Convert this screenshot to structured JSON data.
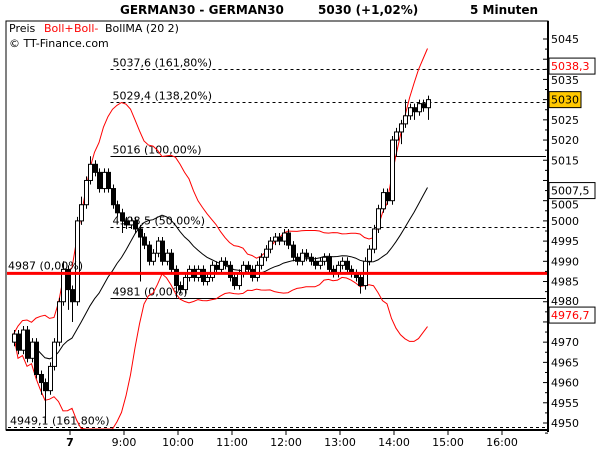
{
  "header": {
    "symbol": "GERMAN30 - GERMAN30",
    "last": "5030 (+1,02%)",
    "interval": "5 Minuten"
  },
  "legend": {
    "price": "Preis",
    "boll_upper": "Boll+",
    "boll_lower": "Boll-",
    "boll_ma": "BollMA (20 2)"
  },
  "watermark": "© TT-Finance.com",
  "colors": {
    "candle_up": "#ffffff",
    "candle_down": "#000000",
    "band": "#ff0000",
    "ma": "#000000",
    "last_price_bg": "#ffc800",
    "support": "#ff0000"
  },
  "chart_data": {
    "type": "candlestick",
    "interval_min": 5,
    "start_time": "06:55",
    "ylim": [
      4950,
      5045
    ],
    "yticks": [
      4950,
      4955,
      4960,
      4965,
      4970,
      4975,
      4980,
      4985,
      4990,
      4995,
      5000,
      5005,
      5010,
      5015,
      5020,
      5025,
      5030,
      5035,
      5040,
      5045
    ],
    "ytick_labels_shown": [
      "4950",
      "4955",
      "4960",
      "4965",
      "4970",
      "4980",
      "4985",
      "4990",
      "4995",
      "5000",
      "5005",
      "5015",
      "5020",
      "5025",
      "5035",
      "5045"
    ],
    "xticks": [
      {
        "label": "7",
        "time": "08:00",
        "bold": true
      },
      {
        "label": "9:00",
        "time": "09:00"
      },
      {
        "label": "10:00",
        "time": "10:00"
      },
      {
        "label": "11:00",
        "time": "11:00"
      },
      {
        "label": "12:00",
        "time": "12:00"
      },
      {
        "label": "13:00",
        "time": "13:00"
      },
      {
        "label": "14:00",
        "time": "14:00"
      },
      {
        "label": "15:00",
        "time": "15:00"
      },
      {
        "label": "16:00",
        "time": "16:00"
      }
    ],
    "xlim": [
      "06:50",
      "16:25"
    ],
    "indicator": {
      "name": "Bollinger",
      "period": 20,
      "stddev": 2
    },
    "ohlc": [
      [
        4970,
        4973,
        4969,
        4972
      ],
      [
        4972,
        4973,
        4967,
        4968
      ],
      [
        4968,
        4974,
        4967,
        4973
      ],
      [
        4973,
        4974,
        4965,
        4966
      ],
      [
        4966,
        4971,
        4965,
        4970
      ],
      [
        4970,
        4971,
        4961,
        4962
      ],
      [
        4962,
        4963,
        4957,
        4960
      ],
      [
        4960,
        4961,
        4950,
        4958
      ],
      [
        4958,
        4965,
        4957,
        4964
      ],
      [
        4964,
        4971,
        4963,
        4970
      ],
      [
        4970,
        4981,
        4969,
        4980
      ],
      [
        4980,
        4990,
        4979,
        4988
      ],
      [
        4988,
        4989,
        4978,
        4983
      ],
      [
        4983,
        4984,
        4975,
        4980
      ],
      [
        4980,
        5001,
        4979,
        5000
      ],
      [
        5000,
        5006,
        4999,
        5004
      ],
      [
        5004,
        5011,
        5003,
        5010
      ],
      [
        5010,
        5016,
        5009,
        5014
      ],
      [
        5014,
        5015,
        5011,
        5012
      ],
      [
        5012,
        5013,
        5007,
        5008
      ],
      [
        5008,
        5013,
        5007,
        5012
      ],
      [
        5012,
        5013,
        5007,
        5008
      ],
      [
        5008,
        5009,
        5003,
        5004
      ],
      [
        5004,
        5005,
        5001,
        5002
      ],
      [
        5002,
        5003,
        4997,
        5000
      ],
      [
        5000,
        5001,
        4998,
        4999
      ],
      [
        4999,
        5001,
        4998,
        5000
      ],
      [
        5000,
        5001,
        4997,
        4998
      ],
      [
        4998,
        4999,
        4985,
        4996
      ],
      [
        4996,
        4997,
        4993,
        4994
      ],
      [
        4994,
        4995,
        4989,
        4990
      ],
      [
        4990,
        4993,
        4989,
        4992
      ],
      [
        4992,
        4996,
        4991,
        4995
      ],
      [
        4995,
        4996,
        4989,
        4990
      ],
      [
        4990,
        4993,
        4989,
        4992
      ],
      [
        4992,
        4993,
        4987,
        4988
      ],
      [
        4988,
        4989,
        4981,
        4984
      ],
      [
        4984,
        4985,
        4982,
        4983
      ],
      [
        4983,
        4987,
        4982,
        4986
      ],
      [
        4986,
        4989,
        4985,
        4988
      ],
      [
        4988,
        4989,
        4985,
        4986
      ],
      [
        4986,
        4989,
        4985,
        4988
      ],
      [
        4988,
        4989,
        4984,
        4985
      ],
      [
        4985,
        4987,
        4984,
        4986
      ],
      [
        4986,
        4990,
        4985,
        4989
      ],
      [
        4989,
        4990,
        4987,
        4988
      ],
      [
        4988,
        4991,
        4987,
        4990
      ],
      [
        4990,
        4991,
        4988,
        4989
      ],
      [
        4989,
        4990,
        4985,
        4986
      ],
      [
        4986,
        4987,
        4983,
        4984
      ],
      [
        4984,
        4988,
        4983,
        4987
      ],
      [
        4987,
        4990,
        4986,
        4989
      ],
      [
        4989,
        4990,
        4987,
        4988
      ],
      [
        4988,
        4989,
        4985,
        4986
      ],
      [
        4986,
        4990,
        4985,
        4989
      ],
      [
        4989,
        4992,
        4988,
        4991
      ],
      [
        4991,
        4994,
        4990,
        4993
      ],
      [
        4993,
        4996,
        4992,
        4995
      ],
      [
        4995,
        4997,
        4994,
        4996
      ],
      [
        4996,
        4997,
        4994,
        4995
      ],
      [
        4995,
        4998,
        4994,
        4997
      ],
      [
        4997,
        4998,
        4993,
        4994
      ],
      [
        4994,
        4995,
        4990,
        4991
      ],
      [
        4991,
        4992,
        4989,
        4990
      ],
      [
        4990,
        4993,
        4989,
        4992
      ],
      [
        4992,
        4993,
        4990,
        4991
      ],
      [
        4991,
        4992,
        4989,
        4990
      ],
      [
        4990,
        4991,
        4988,
        4989
      ],
      [
        4989,
        4991,
        4988,
        4990
      ],
      [
        4990,
        4992,
        4989,
        4991
      ],
      [
        4991,
        4992,
        4987,
        4988
      ],
      [
        4988,
        4989,
        4986,
        4987
      ],
      [
        4987,
        4990,
        4986,
        4989
      ],
      [
        4989,
        4991,
        4988,
        4990
      ],
      [
        4990,
        4991,
        4987,
        4988
      ],
      [
        4988,
        4989,
        4986,
        4987
      ],
      [
        4987,
        4988,
        4985,
        4986
      ],
      [
        4986,
        4987,
        4982,
        4984
      ],
      [
        4984,
        4991,
        4983,
        4990
      ],
      [
        4990,
        4994,
        4989,
        4993
      ],
      [
        4993,
        4999,
        4992,
        4998
      ],
      [
        4998,
        5004,
        4997,
        5003
      ],
      [
        5003,
        5008,
        5002,
        5007
      ],
      [
        5007,
        5008,
        5004,
        5005
      ],
      [
        5005,
        5021,
        5004,
        5020
      ],
      [
        5020,
        5023,
        5016,
        5022
      ],
      [
        5022,
        5025,
        5019,
        5024
      ],
      [
        5024,
        5030,
        5023,
        5026
      ],
      [
        5026,
        5029,
        5025,
        5028
      ],
      [
        5028,
        5029,
        5025,
        5027
      ],
      [
        5027,
        5030,
        5026,
        5029
      ],
      [
        5029,
        5030,
        5027,
        5028
      ],
      [
        5028,
        5031,
        5025,
        5030
      ]
    ],
    "fib_lines": [
      {
        "price": 5037.6,
        "label": "5037,6 (161,80%)",
        "style": "dashed",
        "from": "08:45"
      },
      {
        "price": 5029.4,
        "label": "5029,4 (138,20%)",
        "style": "dashed",
        "from": "08:45"
      },
      {
        "price": 5016,
        "label": "5016 (100,00%)",
        "style": "solid",
        "from": "08:45"
      },
      {
        "price": 4998.5,
        "label": "4998,5 (50,00%)",
        "style": "dashed",
        "from": "08:45"
      },
      {
        "price": 4981,
        "label": "4981 (0,00%)",
        "style": "solid",
        "from": "08:45"
      },
      {
        "price": 4949.1,
        "label": "4949,1 (161,80%)",
        "style": "dashed",
        "from": "06:50"
      }
    ],
    "support_line": {
      "price": 4987,
      "label": "4987 (0,00%)"
    },
    "value_tags": [
      {
        "price": 5038.3,
        "label": "5038,3",
        "kind": "upper-band"
      },
      {
        "price": 5030,
        "label": "5030",
        "kind": "last"
      },
      {
        "price": 5007.5,
        "label": "5007,5",
        "kind": "ma"
      },
      {
        "price": 4976.7,
        "label": "4976,7",
        "kind": "lower-band"
      }
    ]
  }
}
